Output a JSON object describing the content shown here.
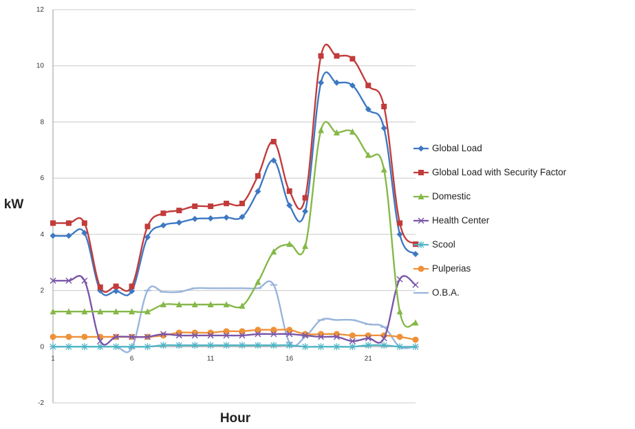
{
  "chart_data": {
    "type": "line",
    "title": "",
    "xlabel": "Hour",
    "ylabel": "kW",
    "x": [
      1,
      2,
      3,
      4,
      5,
      6,
      7,
      8,
      9,
      10,
      11,
      12,
      13,
      14,
      15,
      16,
      17,
      18,
      19,
      20,
      21,
      22,
      23,
      24
    ],
    "xticks": [
      1,
      6,
      11,
      16,
      21
    ],
    "yticks": [
      -2,
      0,
      2,
      4,
      6,
      8,
      10,
      12
    ],
    "xlim": [
      1,
      24
    ],
    "ylim": [
      -2,
      12
    ],
    "grid": "horizontal",
    "legend": "right",
    "series": [
      {
        "name": "Global Load",
        "color": "#3d78c2",
        "marker": "diamond",
        "values": [
          3.95,
          3.95,
          4.05,
          2.0,
          1.98,
          1.98,
          3.9,
          4.32,
          4.42,
          4.55,
          4.57,
          4.6,
          4.62,
          5.53,
          6.63,
          5.03,
          4.82,
          9.4,
          9.4,
          9.3,
          8.45,
          7.78,
          4.0,
          3.3
        ]
      },
      {
        "name": "Global Load with Security Factor",
        "color": "#c23b3b",
        "marker": "square",
        "values": [
          4.4,
          4.4,
          4.4,
          2.12,
          2.15,
          2.15,
          4.28,
          4.75,
          4.85,
          5.0,
          5.0,
          5.1,
          5.1,
          6.08,
          7.3,
          5.54,
          5.3,
          10.35,
          10.35,
          10.25,
          9.3,
          8.55,
          4.4,
          3.65
        ]
      },
      {
        "name": "Domestic",
        "color": "#85b848",
        "marker": "triangle",
        "values": [
          1.25,
          1.25,
          1.25,
          1.25,
          1.25,
          1.25,
          1.25,
          1.5,
          1.5,
          1.5,
          1.5,
          1.5,
          1.45,
          2.3,
          3.38,
          3.65,
          3.58,
          7.7,
          7.62,
          7.65,
          6.82,
          6.3,
          1.25,
          0.85
        ]
      },
      {
        "name": "Health Center",
        "color": "#7a56a8",
        "marker": "x",
        "values": [
          2.35,
          2.35,
          2.35,
          0.2,
          0.35,
          0.35,
          0.35,
          0.45,
          0.4,
          0.4,
          0.4,
          0.4,
          0.4,
          0.45,
          0.45,
          0.45,
          0.4,
          0.35,
          0.35,
          0.2,
          0.3,
          0.3,
          2.4,
          2.2
        ]
      },
      {
        "name": "Scool",
        "color": "#4fb4c4",
        "marker": "star",
        "values": [
          0.0,
          0.0,
          0.0,
          0.0,
          0.0,
          0.0,
          0.0,
          0.05,
          0.05,
          0.05,
          0.05,
          0.05,
          0.05,
          0.05,
          0.05,
          0.05,
          0.0,
          0.0,
          0.0,
          0.0,
          0.05,
          0.05,
          0.0,
          0.0
        ]
      },
      {
        "name": "Pulperias",
        "color": "#ee9139",
        "marker": "circle",
        "values": [
          0.35,
          0.35,
          0.35,
          0.35,
          0.35,
          0.35,
          0.35,
          0.4,
          0.5,
          0.5,
          0.5,
          0.55,
          0.55,
          0.6,
          0.6,
          0.6,
          0.45,
          0.45,
          0.45,
          0.4,
          0.4,
          0.4,
          0.35,
          0.25
        ]
      },
      {
        "name": "O.B.A.",
        "color": "#98b4dc",
        "marker": "dash",
        "values": [
          0.0,
          0.0,
          0.0,
          0.0,
          0.0,
          -0.05,
          2.0,
          1.95,
          1.95,
          2.08,
          2.08,
          2.08,
          2.08,
          2.08,
          2.2,
          0.15,
          0.35,
          0.95,
          0.95,
          0.95,
          0.8,
          0.7,
          0.0,
          0.0
        ]
      }
    ]
  }
}
